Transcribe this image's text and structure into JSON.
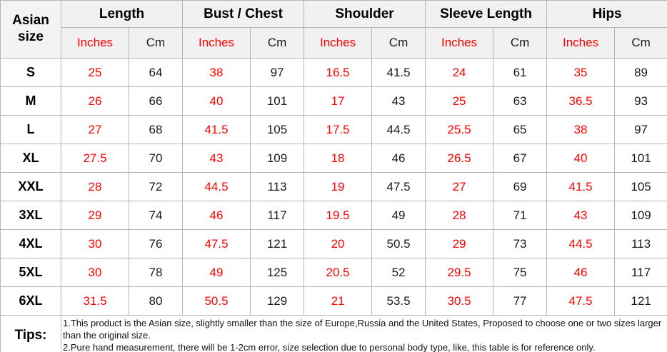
{
  "colors": {
    "red": "#ff0000",
    "black": "#1a1a1a",
    "header_bg": "#f1f1f1",
    "border": "#b5b5b5"
  },
  "header": {
    "corner": "Asian size",
    "groups": [
      "Length",
      "Bust / Chest",
      "Shoulder",
      "Sleeve Length",
      "Hips"
    ],
    "units": {
      "inches": "Inches",
      "cm": "Cm"
    }
  },
  "rows": [
    {
      "size": "S",
      "values": [
        "25",
        "64",
        "38",
        "97",
        "16.5",
        "41.5",
        "24",
        "61",
        "35",
        "89"
      ]
    },
    {
      "size": "M",
      "values": [
        "26",
        "66",
        "40",
        "101",
        "17",
        "43",
        "25",
        "63",
        "36.5",
        "93"
      ]
    },
    {
      "size": "L",
      "values": [
        "27",
        "68",
        "41.5",
        "105",
        "17.5",
        "44.5",
        "25.5",
        "65",
        "38",
        "97"
      ]
    },
    {
      "size": "XL",
      "values": [
        "27.5",
        "70",
        "43",
        "109",
        "18",
        "46",
        "26.5",
        "67",
        "40",
        "101"
      ]
    },
    {
      "size": "XXL",
      "values": [
        "28",
        "72",
        "44.5",
        "113",
        "19",
        "47.5",
        "27",
        "69",
        "41.5",
        "105"
      ]
    },
    {
      "size": "3XL",
      "values": [
        "29",
        "74",
        "46",
        "117",
        "19.5",
        "49",
        "28",
        "71",
        "43",
        "109"
      ]
    },
    {
      "size": "4XL",
      "values": [
        "30",
        "76",
        "47.5",
        "121",
        "20",
        "50.5",
        "29",
        "73",
        "44.5",
        "113"
      ]
    },
    {
      "size": "5XL",
      "values": [
        "30",
        "78",
        "49",
        "125",
        "20.5",
        "52",
        "29.5",
        "75",
        "46",
        "117"
      ]
    },
    {
      "size": "6XL",
      "values": [
        "31.5",
        "80",
        "50.5",
        "129",
        "21",
        "53.5",
        "30.5",
        "77",
        "47.5",
        "121"
      ]
    }
  ],
  "tips": {
    "label": "Tips:",
    "lines": [
      "1.This product is the Asian size, slightly smaller than the size of Europe,Russia and the United States, Proposed to choose one or two sizes larger than the original size.",
      "2.Pure hand measurement, there will be 1-2cm error, size selection due to personal body type, like, this table is for reference only."
    ]
  },
  "chart_data": {
    "type": "table",
    "title": "Asian size chart",
    "columns": [
      "Asian size",
      "Length (Inches)",
      "Length (Cm)",
      "Bust / Chest (Inches)",
      "Bust / Chest (Cm)",
      "Shoulder (Inches)",
      "Shoulder (Cm)",
      "Sleeve Length (Inches)",
      "Sleeve Length (Cm)",
      "Hips (Inches)",
      "Hips (Cm)"
    ],
    "rows": [
      [
        "S",
        25,
        64,
        38,
        97,
        16.5,
        41.5,
        24,
        61,
        35,
        89
      ],
      [
        "M",
        26,
        66,
        40,
        101,
        17,
        43,
        25,
        63,
        36.5,
        93
      ],
      [
        "L",
        27,
        68,
        41.5,
        105,
        17.5,
        44.5,
        25.5,
        65,
        38,
        97
      ],
      [
        "XL",
        27.5,
        70,
        43,
        109,
        18,
        46,
        26.5,
        67,
        40,
        101
      ],
      [
        "XXL",
        28,
        72,
        44.5,
        113,
        19,
        47.5,
        27,
        69,
        41.5,
        105
      ],
      [
        "3XL",
        29,
        74,
        46,
        117,
        19.5,
        49,
        28,
        71,
        43,
        109
      ],
      [
        "4XL",
        30,
        76,
        47.5,
        121,
        20,
        50.5,
        29,
        73,
        44.5,
        113
      ],
      [
        "5XL",
        30,
        78,
        49,
        125,
        20.5,
        52,
        29.5,
        75,
        46,
        117
      ],
      [
        "6XL",
        31.5,
        80,
        50.5,
        129,
        21,
        53.5,
        30.5,
        77,
        47.5,
        121
      ]
    ],
    "notes": [
      "1.This product is the Asian size, slightly smaller than the size of Europe,Russia and the United States, Proposed to choose one or two sizes larger than the original size.",
      "2.Pure hand measurement, there will be 1-2cm error, size selection due to personal body type, like, this table is for reference only."
    ]
  }
}
